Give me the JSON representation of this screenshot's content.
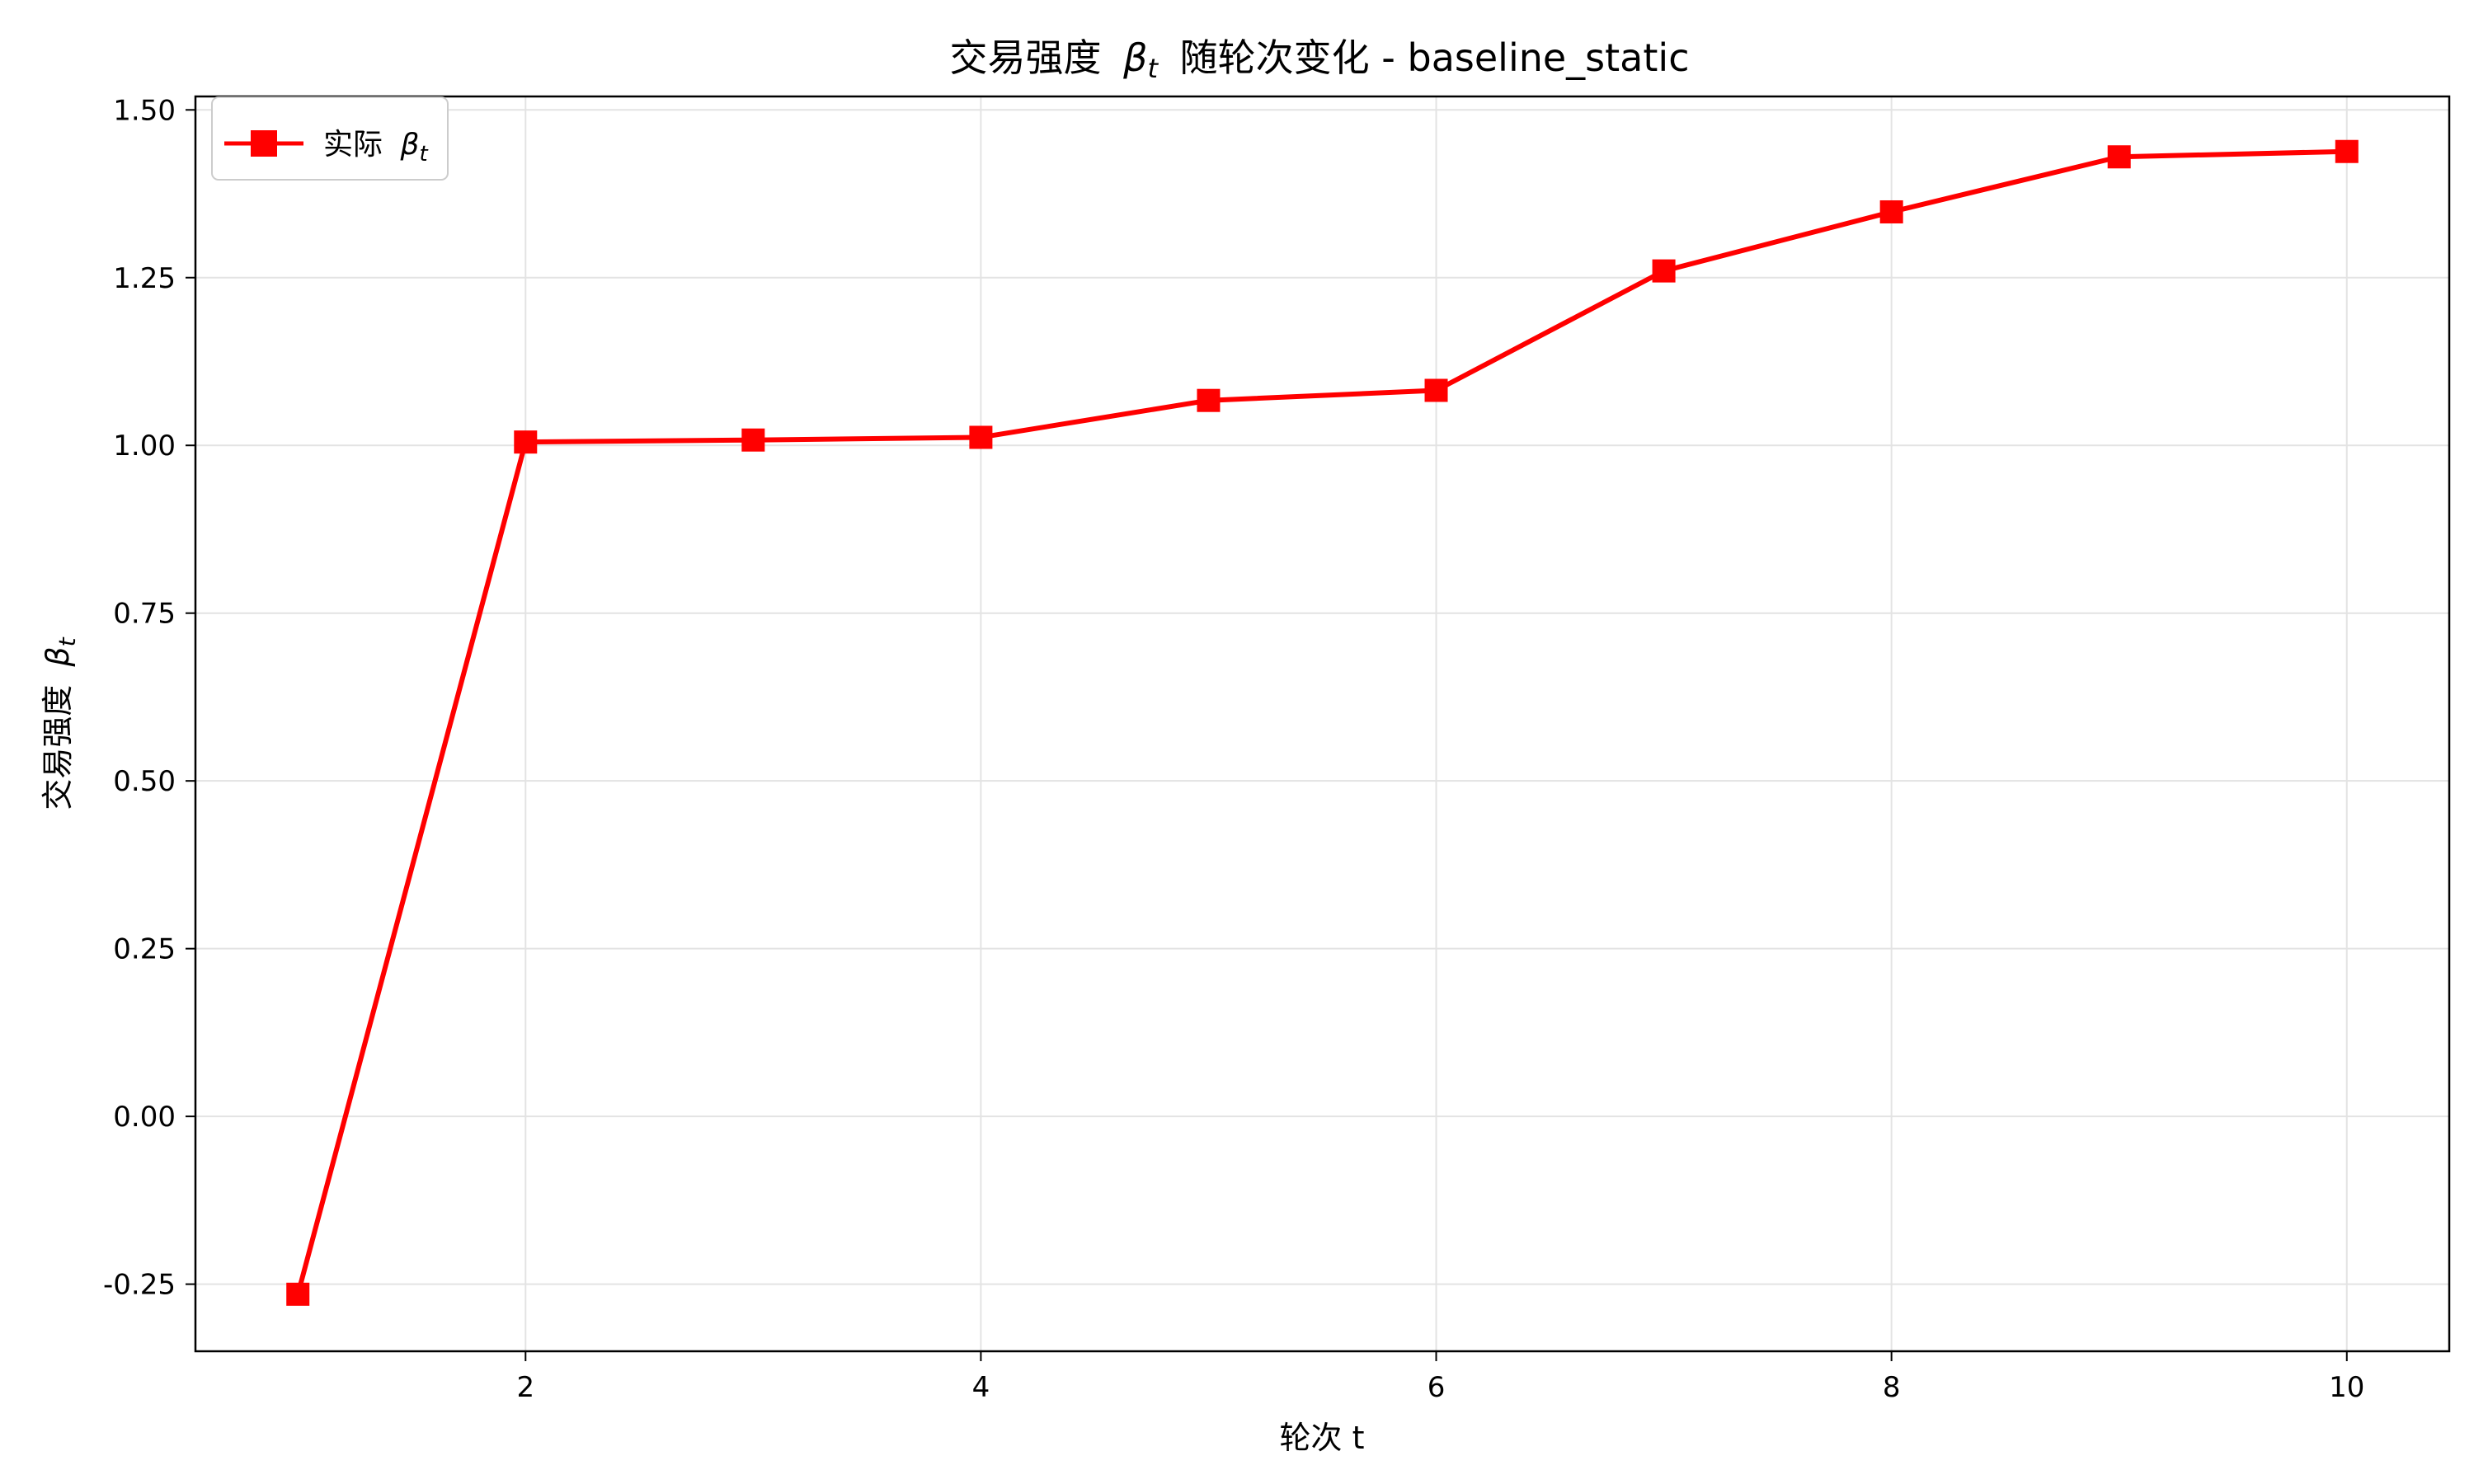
{
  "chart_data": {
    "type": "line",
    "title": "交易强度 β_t 随轮次变化 - baseline_static",
    "title_main": "交易强度",
    "title_beta": "β",
    "title_sub": "t",
    "title_rest": "随轮次变化 - baseline_static",
    "xlabel": "轮次 t",
    "ylabel_main": "交易强度",
    "ylabel_beta": "β",
    "ylabel_sub": "t",
    "xlim": [
      0.55,
      10.45
    ],
    "ylim": [
      -0.35,
      1.52
    ],
    "x_ticks": [
      2,
      4,
      6,
      8,
      10
    ],
    "x_tick_labels": [
      "2",
      "4",
      "6",
      "8",
      "10"
    ],
    "y_ticks": [
      -0.25,
      0.0,
      0.25,
      0.5,
      0.75,
      1.0,
      1.25,
      1.5
    ],
    "y_tick_labels": [
      "-0.25",
      "0.00",
      "0.25",
      "0.50",
      "0.75",
      "1.00",
      "1.25",
      "1.50"
    ],
    "grid": true,
    "legend_position": "top-left",
    "series": [
      {
        "name": "实际 β_t",
        "legend_main": "实际",
        "legend_beta": "β",
        "legend_sub": "t",
        "color": "#ff0000",
        "marker": "square",
        "x": [
          1,
          2,
          3,
          4,
          5,
          6,
          7,
          8,
          9,
          10
        ],
        "y": [
          -0.265,
          1.005,
          1.008,
          1.012,
          1.067,
          1.082,
          1.26,
          1.348,
          1.43,
          1.438
        ]
      }
    ]
  }
}
